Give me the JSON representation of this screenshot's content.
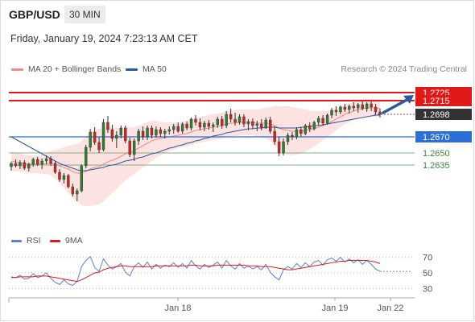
{
  "header": {
    "symbol": "GBP/USD",
    "timeframe": "30 MIN",
    "datetime": "Friday, January 19, 2024 7:23:13 AM CET"
  },
  "legend": {
    "bollinger": {
      "label": "MA 20 + Bollinger Bands",
      "color": "#f28b82"
    },
    "ma50": {
      "label": "MA 50",
      "color": "#2c5aa0"
    },
    "rsi": {
      "label": "RSI",
      "color": "#5b7fd6"
    },
    "rsi_ma": {
      "label": "9MA",
      "color": "#e01919"
    }
  },
  "credit": "Research © 2024 Trading Central",
  "chart_data": [
    {
      "type": "candlestick",
      "title": "",
      "ylim": [
        1.2555,
        1.2745
      ],
      "levels": [
        {
          "value": 1.2725,
          "label": "1.2725",
          "kind": "resistance",
          "color": "#e01919"
        },
        {
          "value": 1.2715,
          "label": "1.2715",
          "kind": "resistance",
          "color": "#e01919"
        },
        {
          "value": 1.2698,
          "label": "1.2698",
          "kind": "last-price",
          "color": "#333333"
        },
        {
          "value": 1.267,
          "label": "1.2670",
          "kind": "pivot",
          "color": "#2c6fd6"
        },
        {
          "value": 1.265,
          "label": "1.2650",
          "kind": "support",
          "color": "#3a8a3a"
        },
        {
          "value": 1.2635,
          "label": "1.2635",
          "kind": "support",
          "color": "#3a8a3a"
        }
      ],
      "bullish_color": "#2e7d32",
      "bearish_color": "#c62828",
      "band_color": "#fde2e2",
      "arrow": {
        "from": 1.2698,
        "to": 1.2725,
        "color": "#2c5aa0"
      },
      "candles": [
        [
          1.2633,
          1.2639,
          1.2628,
          1.2637
        ],
        [
          1.2637,
          1.2642,
          1.2632,
          1.2634
        ],
        [
          1.2634,
          1.2641,
          1.263,
          1.2638
        ],
        [
          1.2638,
          1.2641,
          1.2629,
          1.2631
        ],
        [
          1.2631,
          1.2638,
          1.2627,
          1.2636
        ],
        [
          1.2636,
          1.2644,
          1.2633,
          1.2642
        ],
        [
          1.2642,
          1.2645,
          1.2634,
          1.2636
        ],
        [
          1.2636,
          1.2643,
          1.263,
          1.264
        ],
        [
          1.264,
          1.2647,
          1.2636,
          1.2643
        ],
        [
          1.2643,
          1.2646,
          1.2634,
          1.2637
        ],
        [
          1.2637,
          1.264,
          1.2624,
          1.2626
        ],
        [
          1.2626,
          1.263,
          1.2614,
          1.2617
        ],
        [
          1.2617,
          1.2625,
          1.2612,
          1.2622
        ],
        [
          1.2622,
          1.2624,
          1.2606,
          1.2608
        ],
        [
          1.2608,
          1.2612,
          1.2596,
          1.2599
        ],
        [
          1.2599,
          1.2606,
          1.259,
          1.2603
        ],
        [
          1.2603,
          1.2636,
          1.2601,
          1.2634
        ],
        [
          1.2634,
          1.266,
          1.2631,
          1.2657
        ],
        [
          1.2657,
          1.268,
          1.2652,
          1.2676
        ],
        [
          1.2676,
          1.2682,
          1.266,
          1.2663
        ],
        [
          1.2663,
          1.267,
          1.265,
          1.2654
        ],
        [
          1.2654,
          1.2692,
          1.2652,
          1.2688
        ],
        [
          1.2688,
          1.2696,
          1.2675,
          1.2679
        ],
        [
          1.2679,
          1.2685,
          1.2664,
          1.2668
        ],
        [
          1.2668,
          1.2677,
          1.2656,
          1.2672
        ],
        [
          1.2672,
          1.2684,
          1.2668,
          1.2681
        ],
        [
          1.2681,
          1.2684,
          1.2662,
          1.2665
        ],
        [
          1.2665,
          1.2669,
          1.2645,
          1.2648
        ],
        [
          1.2648,
          1.2668,
          1.264,
          1.2665
        ],
        [
          1.2665,
          1.268,
          1.266,
          1.2677
        ],
        [
          1.2677,
          1.2683,
          1.2666,
          1.267
        ],
        [
          1.267,
          1.2684,
          1.2666,
          1.2681
        ],
        [
          1.2681,
          1.2684,
          1.2668,
          1.2672
        ],
        [
          1.2672,
          1.2683,
          1.2669,
          1.2679
        ],
        [
          1.2679,
          1.2682,
          1.267,
          1.2674
        ],
        [
          1.2674,
          1.268,
          1.2668,
          1.2677
        ],
        [
          1.2677,
          1.2683,
          1.2673,
          1.2679
        ],
        [
          1.2679,
          1.2686,
          1.2674,
          1.2683
        ],
        [
          1.2683,
          1.2688,
          1.2675,
          1.2677
        ],
        [
          1.2677,
          1.2688,
          1.2674,
          1.2686
        ],
        [
          1.2686,
          1.2689,
          1.2678,
          1.2681
        ],
        [
          1.2681,
          1.2694,
          1.2678,
          1.2692
        ],
        [
          1.2692,
          1.2697,
          1.2684,
          1.2688
        ],
        [
          1.2688,
          1.2693,
          1.2678,
          1.2682
        ],
        [
          1.2682,
          1.269,
          1.2677,
          1.2687
        ],
        [
          1.2687,
          1.2691,
          1.2679,
          1.2683
        ],
        [
          1.2683,
          1.2688,
          1.2676,
          1.2685
        ],
        [
          1.2685,
          1.2695,
          1.2681,
          1.2692
        ],
        [
          1.2692,
          1.2696,
          1.268,
          1.2684
        ],
        [
          1.2684,
          1.2702,
          1.2681,
          1.2698
        ],
        [
          1.2698,
          1.2705,
          1.2688,
          1.2692
        ],
        [
          1.2692,
          1.27,
          1.2684,
          1.2688
        ],
        [
          1.2688,
          1.2698,
          1.2685,
          1.2695
        ],
        [
          1.2695,
          1.2698,
          1.2682,
          1.2686
        ],
        [
          1.2686,
          1.2692,
          1.2678,
          1.2689
        ],
        [
          1.2689,
          1.2693,
          1.268,
          1.2684
        ],
        [
          1.2684,
          1.269,
          1.2677,
          1.2686
        ],
        [
          1.2686,
          1.2692,
          1.2678,
          1.2681
        ],
        [
          1.2681,
          1.2694,
          1.268,
          1.2691
        ],
        [
          1.2691,
          1.2695,
          1.2674,
          1.2677
        ],
        [
          1.2677,
          1.2683,
          1.266,
          1.2664
        ],
        [
          1.2664,
          1.267,
          1.2646,
          1.265
        ],
        [
          1.265,
          1.2668,
          1.2647,
          1.2664
        ],
        [
          1.2664,
          1.2675,
          1.266,
          1.2672
        ],
        [
          1.2672,
          1.2676,
          1.2666,
          1.267
        ],
        [
          1.267,
          1.2682,
          1.2667,
          1.2679
        ],
        [
          1.2679,
          1.2682,
          1.267,
          1.2674
        ],
        [
          1.2674,
          1.2686,
          1.2672,
          1.2684
        ],
        [
          1.2684,
          1.2688,
          1.2676,
          1.268
        ],
        [
          1.268,
          1.269,
          1.2678,
          1.2688
        ],
        [
          1.2688,
          1.2696,
          1.2684,
          1.2693
        ],
        [
          1.2693,
          1.2697,
          1.2684,
          1.2687
        ],
        [
          1.2687,
          1.2699,
          1.2685,
          1.2697
        ],
        [
          1.2697,
          1.2706,
          1.2693,
          1.2703
        ],
        [
          1.2703,
          1.2708,
          1.2696,
          1.2701
        ],
        [
          1.2701,
          1.2709,
          1.2698,
          1.2707
        ],
        [
          1.2707,
          1.2711,
          1.2701,
          1.2704
        ],
        [
          1.2704,
          1.271,
          1.2699,
          1.2708
        ],
        [
          1.2708,
          1.2713,
          1.2702,
          1.2706
        ],
        [
          1.2706,
          1.2712,
          1.27,
          1.271
        ],
        [
          1.271,
          1.2714,
          1.2703,
          1.2705
        ],
        [
          1.2705,
          1.2713,
          1.2701,
          1.2711
        ],
        [
          1.2711,
          1.2714,
          1.2702,
          1.2707
        ],
        [
          1.2707,
          1.2711,
          1.2698,
          1.2701
        ],
        [
          1.2701,
          1.2705,
          1.2694,
          1.2698
        ]
      ],
      "ma50_values": [
        1.267,
        1.2667,
        1.2664,
        1.2661,
        1.2658,
        1.2655,
        1.2652,
        1.2649,
        1.2646,
        1.2643,
        1.264,
        1.2637,
        1.2635,
        1.2633,
        1.2631,
        1.2629,
        1.2628,
        1.2628,
        1.2629,
        1.263,
        1.2631,
        1.2632,
        1.2634,
        1.2635,
        1.2636,
        1.2638,
        1.264,
        1.2641,
        1.2642,
        1.2644,
        1.2645,
        1.2647,
        1.2649,
        1.265,
        1.2652,
        1.2654,
        1.2656,
        1.2657,
        1.2659,
        1.266,
        1.2662,
        1.2663,
        1.2665,
        1.2666,
        1.2668,
        1.2669,
        1.2671,
        1.2672,
        1.2673,
        1.2675,
        1.2676,
        1.2677,
        1.2678,
        1.2679,
        1.268,
        1.268,
        1.2681,
        1.2681,
        1.2682,
        1.2682,
        1.2682,
        1.2681,
        1.2681,
        1.2681,
        1.2681,
        1.2681,
        1.2682,
        1.2682,
        1.2683,
        1.2684,
        1.2684,
        1.2685,
        1.2686,
        1.2687,
        1.2688,
        1.2689,
        1.269,
        1.2691,
        1.2692,
        1.2693,
        1.2694,
        1.2695,
        1.2696,
        1.2697,
        1.2697
      ],
      "ma20_values": [
        1.264,
        1.2639,
        1.2638,
        1.2637,
        1.2636,
        1.2636,
        1.2636,
        1.2636,
        1.2637,
        1.2637,
        1.2636,
        1.2634,
        1.2632,
        1.263,
        1.2627,
        1.2625,
        1.2625,
        1.2627,
        1.263,
        1.2632,
        1.2633,
        1.2636,
        1.2639,
        1.2641,
        1.2643,
        1.2646,
        1.2649,
        1.2651,
        1.2653,
        1.2656,
        1.2659,
        1.2662,
        1.2665,
        1.2667,
        1.2668,
        1.2669,
        1.267,
        1.2671,
        1.2672,
        1.2673,
        1.2674,
        1.2676,
        1.2678,
        1.2679,
        1.268,
        1.2681,
        1.2682,
        1.2683,
        1.2684,
        1.2686,
        1.2687,
        1.2687,
        1.2688,
        1.2688,
        1.2688,
        1.2688,
        1.2687,
        1.2687,
        1.2687,
        1.2686,
        1.2684,
        1.2681,
        1.2679,
        1.2678,
        1.2677,
        1.2677,
        1.2677,
        1.2678,
        1.2679,
        1.268,
        1.2682,
        1.2684,
        1.2686,
        1.2689,
        1.2692,
        1.2695,
        1.2698,
        1.27,
        1.2702,
        1.2704,
        1.2705,
        1.2706,
        1.2706,
        1.2706,
        1.2705
      ],
      "band_halfwidth": [
        0.0012,
        0.0012,
        0.0011,
        0.0011,
        0.0011,
        0.0011,
        0.0011,
        0.0012,
        0.0013,
        0.0015,
        0.0018,
        0.0021,
        0.0025,
        0.0029,
        0.0033,
        0.0036,
        0.004,
        0.0043,
        0.0046,
        0.0047,
        0.0047,
        0.0046,
        0.0044,
        0.0041,
        0.0038,
        0.0035,
        0.0033,
        0.0031,
        0.0029,
        0.0028,
        0.0027,
        0.0026,
        0.0025,
        0.0023,
        0.0021,
        0.0019,
        0.0018,
        0.0017,
        0.0016,
        0.0016,
        0.0016,
        0.0016,
        0.0016,
        0.0016,
        0.0016,
        0.0016,
        0.0016,
        0.0016,
        0.0016,
        0.0016,
        0.0016,
        0.0016,
        0.0016,
        0.0016,
        0.0016,
        0.0016,
        0.0017,
        0.0018,
        0.0019,
        0.0021,
        0.0024,
        0.0027,
        0.0029,
        0.003,
        0.003,
        0.0029,
        0.0028,
        0.0026,
        0.0024,
        0.0022,
        0.002,
        0.0018,
        0.0016,
        0.0015,
        0.0014,
        0.0013,
        0.0012,
        0.0012,
        0.0011,
        0.0011,
        0.0011,
        0.0011,
        0.0011,
        0.0011,
        0.0011
      ]
    },
    {
      "type": "line",
      "title": "",
      "ylim": [
        20,
        80
      ],
      "yticks": [
        70,
        50,
        30
      ],
      "series": [
        {
          "name": "RSI",
          "color": "#5b7fd6",
          "values": [
            45,
            44,
            47,
            42,
            43,
            49,
            44,
            46,
            50,
            43,
            38,
            35,
            41,
            36,
            34,
            39,
            58,
            66,
            71,
            57,
            52,
            68,
            60,
            55,
            58,
            62,
            51,
            46,
            58,
            63,
            57,
            64,
            55,
            61,
            56,
            60,
            58,
            63,
            57,
            62,
            56,
            66,
            59,
            55,
            61,
            57,
            60,
            64,
            56,
            66,
            59,
            55,
            62,
            56,
            59,
            55,
            58,
            54,
            61,
            51,
            45,
            41,
            54,
            58,
            55,
            62,
            57,
            63,
            58,
            64,
            66,
            60,
            67,
            69,
            65,
            70,
            64,
            68,
            63,
            67,
            61,
            66,
            61,
            55,
            52
          ]
        },
        {
          "name": "9MA",
          "color": "#e01919",
          "values": [
            44,
            44,
            45,
            45,
            45,
            45,
            46,
            46,
            46,
            45,
            44,
            43,
            42,
            41,
            40,
            39,
            41,
            44,
            47,
            50,
            51,
            54,
            56,
            57,
            58,
            59,
            59,
            58,
            58,
            58,
            58,
            58,
            58,
            59,
            59,
            59,
            59,
            59,
            59,
            59,
            59,
            60,
            60,
            59,
            59,
            59,
            59,
            60,
            60,
            60,
            60,
            60,
            60,
            60,
            59,
            59,
            59,
            58,
            58,
            58,
            57,
            56,
            55,
            54,
            54,
            55,
            56,
            57,
            58,
            59,
            60,
            61,
            62,
            63,
            64,
            65,
            65,
            66,
            66,
            66,
            66,
            66,
            65,
            64,
            62
          ]
        }
      ]
    }
  ],
  "xaxis": {
    "labels": [
      "Jan 18",
      "Jan 19",
      "Jan 22"
    ]
  }
}
